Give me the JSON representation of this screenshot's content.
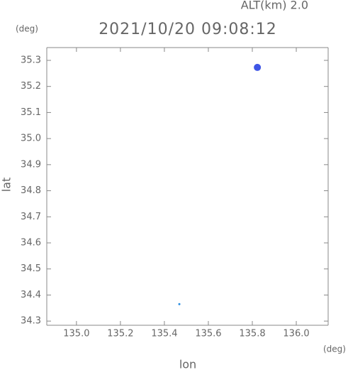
{
  "chart_data": {
    "type": "scatter",
    "annotation": "ALT(km) 2.0",
    "title": "2021/10/20 09:08:12",
    "y_unit": "(deg)",
    "x_unit": "(deg)",
    "ylabel": "lat",
    "xlabel": "lon",
    "x": [
      135.823,
      135.468
    ],
    "series": [
      {
        "values": [
          35.273,
          34.365
        ],
        "colors": [
          "#3f56e6",
          "#2a8ee0"
        ],
        "sizes": [
          5,
          1.5
        ]
      }
    ],
    "xlim": [
      134.865,
      136.145
    ],
    "ylim": [
      34.284,
      35.349
    ],
    "xticks": [
      {
        "value": 135.0,
        "label": "135.0"
      },
      135.2,
      135.4,
      135.6,
      135.8,
      {
        "value": 136.0,
        "label": "136.0"
      }
    ],
    "yticks": [
      34.3,
      34.4,
      34.5,
      34.6,
      34.7,
      34.8,
      34.9,
      {
        "value": 35.0,
        "label": "35.0"
      },
      35.1,
      35.2,
      35.3
    ]
  }
}
